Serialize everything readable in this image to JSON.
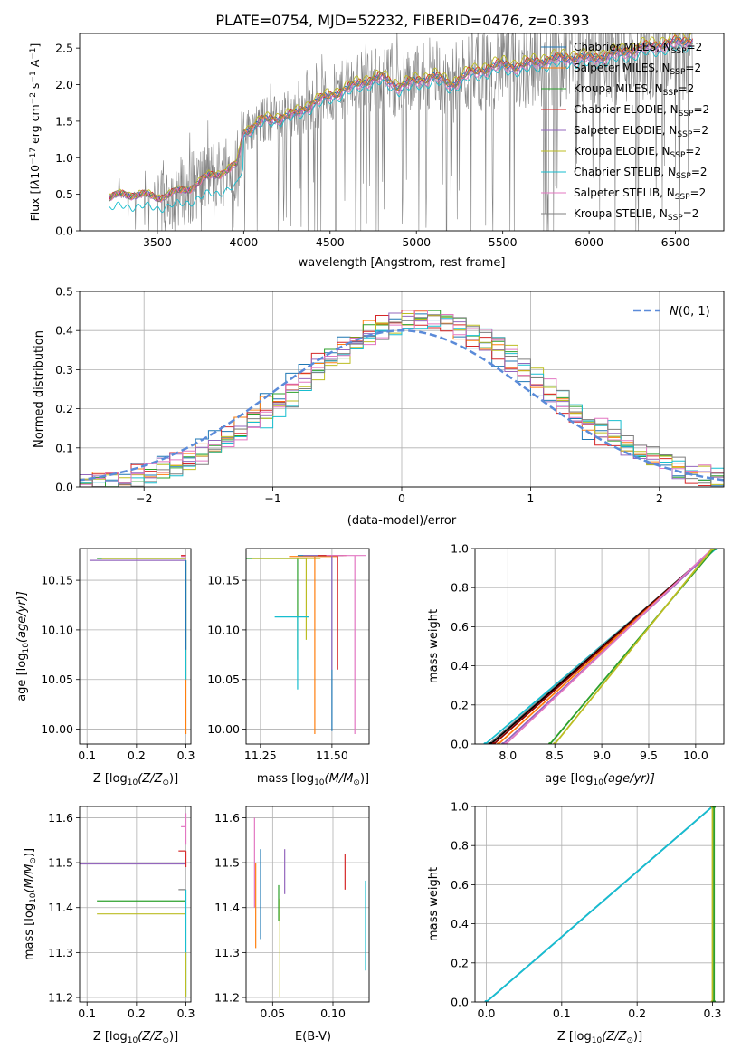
{
  "figure": {
    "title": "PLATE=0754, MJD=52232, FIBERID=0476, z=0.393"
  },
  "colors": {
    "grid": "#b0b0b0",
    "data_gray": "#808080",
    "gaussian": "#5b8bd9",
    "palette": [
      "#1f77b4",
      "#ff7f0e",
      "#2ca02c",
      "#d62728",
      "#9467bd",
      "#8c564b",
      "#e377c2",
      "#7f7f7f",
      "#bcbd22",
      "#17becf"
    ]
  },
  "chart_data": [
    {
      "id": "spectrum",
      "type": "line",
      "xlabel": "wavelength [Angstrom, rest frame]",
      "ylabel_parts": [
        "Flux [f",
        "λ",
        "10",
        "−17",
        " erg cm",
        "−2",
        " s",
        "−1",
        " A",
        "−1",
        "]"
      ],
      "xlim": [
        3050,
        6780
      ],
      "ylim": [
        0,
        2.7
      ],
      "xticks": [
        3500,
        4000,
        4500,
        5000,
        5500,
        6000,
        6500
      ],
      "yticks": [
        0.0,
        0.5,
        1.0,
        1.5,
        2.0,
        2.5
      ],
      "continuum": {
        "x": [
          3220,
          3300,
          3400,
          3500,
          3600,
          3700,
          3800,
          3900,
          3960,
          4000,
          4100,
          4200,
          4300,
          4400,
          4500,
          4600,
          4700,
          4800,
          4900,
          5000,
          5100,
          5200,
          5300,
          5400,
          5500,
          5600,
          5700,
          5800,
          5900,
          6000,
          6100,
          6200,
          6300,
          6400,
          6500,
          6600
        ],
        "y": [
          0.45,
          0.5,
          0.5,
          0.46,
          0.52,
          0.6,
          0.75,
          0.82,
          0.9,
          1.35,
          1.5,
          1.55,
          1.6,
          1.75,
          1.85,
          1.95,
          2.05,
          2.1,
          1.98,
          2.05,
          2.12,
          2.0,
          2.15,
          2.22,
          2.28,
          2.25,
          2.32,
          2.35,
          2.38,
          2.36,
          2.4,
          2.45,
          2.5,
          2.55,
          2.58,
          2.62
        ]
      },
      "data_range": [
        3220,
        6600
      ],
      "model_series": [
        {
          "name": "Chabrier MILES, N_SSP=2",
          "color": "#1f77b4",
          "scale": 1.0,
          "xmax": 6600
        },
        {
          "name": "Salpeter MILES, N_SSP=2",
          "color": "#ff7f0e",
          "scale": 1.0,
          "xmax": 6600
        },
        {
          "name": "Kroupa MILES, N_SSP=2",
          "color": "#2ca02c",
          "scale": 1.0,
          "xmax": 6600
        },
        {
          "name": "Chabrier ELODIE, N_SSP=2",
          "color": "#d62728",
          "scale": 1.01,
          "xmax": 6600
        },
        {
          "name": "Salpeter ELODIE, N_SSP=2",
          "color": "#9467bd",
          "scale": 0.99,
          "xmax": 6600
        },
        {
          "name": "Kroupa ELODIE, N_SSP=2",
          "color": "#bcbd22",
          "scale": 1.03,
          "xmax": 6600
        },
        {
          "name": "Chabrier STELIB, N_SSP=2",
          "color": "#17becf",
          "scale": 0.96,
          "xmax": 6600
        },
        {
          "name": "Salpeter STELIB, N_SSP=2",
          "color": "#e377c2",
          "scale": 0.98,
          "xmax": 6600
        },
        {
          "name": "Kroupa STELIB, N_SSP=2",
          "color": "#7f7f7f",
          "scale": 1.0,
          "xmax": 6600
        }
      ],
      "legend": {
        "placement": "top-right",
        "entries": [
          {
            "prefix": "Chabrier MILES, N",
            "sub": "SSP",
            "suffix": "=2",
            "color": "#1f77b4"
          },
          {
            "prefix": "Salpeter MILES, N",
            "sub": "SSP",
            "suffix": "=2",
            "color": "#ff7f0e"
          },
          {
            "prefix": "Kroupa MILES, N",
            "sub": "SSP",
            "suffix": "=2",
            "color": "#2ca02c"
          },
          {
            "prefix": "Chabrier ELODIE, N",
            "sub": "SSP",
            "suffix": "=2",
            "color": "#d62728"
          },
          {
            "prefix": "Salpeter ELODIE, N",
            "sub": "SSP",
            "suffix": "=2",
            "color": "#9467bd"
          },
          {
            "prefix": "Kroupa ELODIE, N",
            "sub": "SSP",
            "suffix": "=2",
            "color": "#bcbd22"
          },
          {
            "prefix": "Chabrier STELIB, N",
            "sub": "SSP",
            "suffix": "=2",
            "color": "#17becf"
          },
          {
            "prefix": "Salpeter STELIB, N",
            "sub": "SSP",
            "suffix": "=2",
            "color": "#e377c2"
          },
          {
            "prefix": "Kroupa STELIB, N",
            "sub": "SSP",
            "suffix": "=2",
            "color": "#7f7f7f"
          }
        ]
      }
    },
    {
      "id": "residuals",
      "type": "histogram",
      "xlabel": "(data-model)/error",
      "ylabel": "Normed distribution",
      "xlim": [
        -2.5,
        2.5
      ],
      "ylim": [
        0,
        0.5
      ],
      "xticks": [
        -2,
        -1,
        0,
        1,
        2
      ],
      "yticks": [
        0.0,
        0.1,
        0.2,
        0.3,
        0.4,
        0.5
      ],
      "bin_width": 0.1,
      "gaussian": {
        "label": "N(0,1)",
        "mu": 0,
        "sigma": 1,
        "amplitude": 0.4
      },
      "legend": {
        "placement": "top-right",
        "label_main": "N",
        "label_rest": "(0, 1)"
      },
      "series_centers": [
        0.05,
        0.1,
        0.15,
        0.08,
        0.12,
        0.2,
        0.25,
        0.18,
        0.22
      ]
    },
    {
      "id": "age_vs_Z",
      "type": "errorbar",
      "xlabel_parts": [
        "Z [log",
        "10",
        "(Z/Z",
        "⊙",
        ")]"
      ],
      "ylabel_parts": [
        "age  [log",
        "10",
        "(age/yr)]"
      ],
      "xlim": [
        0.085,
        0.31
      ],
      "ylim": [
        9.985,
        10.182
      ],
      "xticks": [
        0.1,
        0.2,
        0.3
      ],
      "yticks": [
        10.0,
        10.05,
        10.1,
        10.15
      ],
      "bars": [
        {
          "x": 0.3,
          "y": 10.17,
          "xerr": [
            0.105,
            0.3
          ],
          "color": "#9467bd"
        },
        {
          "x": 0.3,
          "y": 10.172,
          "xerr": [
            0.12,
            0.3
          ],
          "color": "#2ca02c"
        },
        {
          "x": 0.3,
          "y": 10.172,
          "xerr": [
            0.13,
            0.3
          ],
          "color": "#bcbd22"
        },
        {
          "x": 0.3,
          "y": 10.174,
          "xerr": [
            0.29,
            0.3
          ],
          "color": "#e377c2"
        },
        {
          "x": 0.3,
          "y": 10.175,
          "xerr": [
            0.29,
            0.3
          ],
          "color": "#d62728"
        },
        {
          "x": 0.3,
          "y": 10.17,
          "yerr": [
            9.995,
            10.17
          ],
          "color": "#ff7f0e"
        },
        {
          "x": 0.3,
          "y": 10.17,
          "yerr": [
            10.05,
            10.17
          ],
          "color": "#17becf"
        },
        {
          "x": 0.3,
          "y": 10.17,
          "yerr": [
            10.08,
            10.17
          ],
          "color": "#1f77b4"
        }
      ]
    },
    {
      "id": "age_vs_mass",
      "type": "errorbar",
      "xlabel_parts": [
        "mass [log",
        "10",
        "(M/M",
        "⊙",
        ")]"
      ],
      "xlim": [
        11.2,
        11.63
      ],
      "ylim": [
        9.985,
        10.182
      ],
      "xticks": [
        11.25,
        11.5
      ],
      "yticks": [
        10.0,
        10.05,
        10.1,
        10.15
      ],
      "bars": [
        {
          "x": 11.38,
          "y": 10.172,
          "xerr": [
            11.2,
            11.41
          ],
          "yerr": [
            10.07,
            10.172
          ],
          "color": "#2ca02c"
        },
        {
          "x": 11.41,
          "y": 10.172,
          "xerr": [
            11.22,
            11.46
          ],
          "yerr": [
            10.09,
            10.172
          ],
          "color": "#bcbd22"
        },
        {
          "x": 11.44,
          "y": 10.174,
          "xerr": [
            11.35,
            11.52
          ],
          "yerr": [
            9.995,
            10.174
          ],
          "color": "#ff7f0e"
        },
        {
          "x": 11.5,
          "y": 10.175,
          "xerr": [
            11.38,
            11.54
          ],
          "yerr": [
            9.998,
            10.175
          ],
          "color": "#1f77b4"
        },
        {
          "x": 11.5,
          "y": 10.175,
          "xerr": [
            11.4,
            11.52
          ],
          "yerr": [
            10.06,
            10.175
          ],
          "color": "#9467bd"
        },
        {
          "x": 11.52,
          "y": 10.175,
          "xerr": [
            11.45,
            11.55
          ],
          "yerr": [
            10.06,
            10.175
          ],
          "color": "#d62728"
        },
        {
          "x": 11.58,
          "y": 10.175,
          "xerr": [
            11.48,
            11.62
          ],
          "yerr": [
            9.995,
            10.175
          ],
          "color": "#e377c2"
        },
        {
          "x": 11.38,
          "y": 10.113,
          "xerr": [
            11.3,
            11.42
          ],
          "yerr": [
            10.04,
            10.113
          ],
          "color": "#17becf"
        }
      ]
    },
    {
      "id": "cum_age",
      "type": "line",
      "xlabel_parts": [
        "age  [log",
        "10",
        "(age/yr)]"
      ],
      "ylabel": "mass weight",
      "xlim": [
        7.65,
        10.3
      ],
      "ylim": [
        0,
        1
      ],
      "xticks": [
        8.0,
        8.5,
        9.0,
        9.5,
        10.0
      ],
      "yticks": [
        0.0,
        0.2,
        0.4,
        0.6,
        0.8,
        1.0
      ],
      "series": [
        {
          "x": [
            7.76,
            10.22
          ],
          "y": [
            0,
            1
          ],
          "color": "#17becf"
        },
        {
          "x": [
            7.8,
            10.2
          ],
          "y": [
            0,
            1
          ],
          "color": "#7f7f7f"
        },
        {
          "x": [
            7.82,
            10.2
          ],
          "y": [
            0,
            1
          ],
          "color": "#000000"
        },
        {
          "x": [
            7.85,
            10.2
          ],
          "y": [
            0,
            1
          ],
          "color": "#8b0000"
        },
        {
          "x": [
            7.9,
            10.2
          ],
          "y": [
            0,
            1
          ],
          "color": "#ff7f0e"
        },
        {
          "x": [
            7.95,
            10.2
          ],
          "y": [
            0,
            1
          ],
          "color": "#9467bd"
        },
        {
          "x": [
            7.98,
            10.18
          ],
          "y": [
            0,
            1
          ],
          "color": "#e377c2"
        },
        {
          "x": [
            8.45,
            10.2
          ],
          "y": [
            0,
            1
          ],
          "color": "#2ca02c"
        },
        {
          "x": [
            8.5,
            10.18
          ],
          "y": [
            0,
            1
          ],
          "color": "#bcbd22"
        }
      ]
    },
    {
      "id": "mass_vs_Z",
      "type": "errorbar",
      "xlabel_parts": [
        "Z [log",
        "10",
        "(Z/Z",
        "⊙",
        ")]"
      ],
      "ylabel_parts": [
        "mass [log",
        "10",
        "(M/M",
        "⊙",
        ")]"
      ],
      "xlim": [
        0.085,
        0.31
      ],
      "ylim": [
        11.19,
        11.625
      ],
      "xticks": [
        0.1,
        0.2,
        0.3
      ],
      "yticks": [
        11.2,
        11.3,
        11.4,
        11.5,
        11.6
      ],
      "bars": [
        {
          "x": 0.3,
          "y": 11.498,
          "xerr": [
            0.085,
            0.3
          ],
          "color": "#1f77b4"
        },
        {
          "x": 0.3,
          "y": 11.497,
          "xerr": [
            0.085,
            0.3
          ],
          "color": "#9467bd"
        },
        {
          "x": 0.3,
          "y": 11.415,
          "xerr": [
            0.12,
            0.3
          ],
          "color": "#2ca02c"
        },
        {
          "x": 0.3,
          "y": 11.386,
          "xerr": [
            0.12,
            0.3
          ],
          "color": "#bcbd22"
        },
        {
          "x": 0.3,
          "y": 11.526,
          "xerr": [
            0.285,
            0.3
          ],
          "yerr": [
            11.49,
            11.526
          ],
          "color": "#d62728"
        },
        {
          "x": 0.3,
          "y": 11.58,
          "xerr": [
            0.29,
            0.3
          ],
          "yerr": [
            11.54,
            11.61
          ],
          "color": "#e377c2"
        },
        {
          "x": 0.3,
          "y": 11.44,
          "xerr": [
            0.285,
            0.3
          ],
          "color": "#7f7f7f"
        },
        {
          "x": 0.3,
          "y": 11.3,
          "yerr": [
            11.2,
            11.44
          ],
          "color": "#17becf"
        },
        {
          "x": 0.3,
          "y": 11.25,
          "yerr": [
            11.2,
            11.3
          ],
          "color": "#bcbd22"
        }
      ]
    },
    {
      "id": "mass_vs_EBV",
      "type": "errorbar",
      "xlabel": "E(B-V)",
      "xlim": [
        0.028,
        0.13
      ],
      "ylim": [
        11.19,
        11.625
      ],
      "xticks": [
        0.05,
        0.1
      ],
      "yticks": [
        11.2,
        11.3,
        11.4,
        11.5,
        11.6
      ],
      "bars": [
        {
          "x": 0.035,
          "y": 11.5,
          "yerr": [
            11.4,
            11.6
          ],
          "color": "#e377c2"
        },
        {
          "x": 0.036,
          "y": 11.4,
          "yerr": [
            11.31,
            11.5
          ],
          "color": "#ff7f0e"
        },
        {
          "x": 0.04,
          "y": 11.43,
          "yerr": [
            11.33,
            11.53
          ],
          "color": "#1f77b4"
        },
        {
          "x": 0.055,
          "y": 11.41,
          "yerr": [
            11.37,
            11.45
          ],
          "color": "#2ca02c"
        },
        {
          "x": 0.056,
          "y": 11.31,
          "yerr": [
            11.2,
            11.42
          ],
          "color": "#bcbd22"
        },
        {
          "x": 0.06,
          "y": 11.48,
          "yerr": [
            11.43,
            11.53
          ],
          "color": "#9467bd"
        },
        {
          "x": 0.11,
          "y": 11.48,
          "yerr": [
            11.44,
            11.52
          ],
          "color": "#d62728"
        },
        {
          "x": 0.127,
          "y": 11.36,
          "yerr": [
            11.26,
            11.46
          ],
          "color": "#17becf"
        }
      ]
    },
    {
      "id": "cum_Z",
      "type": "line",
      "xlabel_parts": [
        "Z [log",
        "10",
        "(Z/Z",
        "⊙",
        ")]"
      ],
      "ylabel": "mass weight",
      "xlim": [
        -0.015,
        0.315
      ],
      "ylim": [
        0,
        1
      ],
      "xticks": [
        0.0,
        0.1,
        0.2,
        0.3
      ],
      "yticks": [
        0.0,
        0.2,
        0.4,
        0.6,
        0.8,
        1.0
      ],
      "series": [
        {
          "x": [
            0.0,
            0.3
          ],
          "y": [
            0,
            1
          ],
          "color": "#1f77b4"
        },
        {
          "x": [
            0.0,
            0.3
          ],
          "y": [
            0,
            1
          ],
          "color": "#17becf"
        },
        {
          "x": [
            0.3,
            0.3
          ],
          "y": [
            0,
            1
          ],
          "color": "#bcbd22"
        },
        {
          "x": [
            0.302,
            0.302
          ],
          "y": [
            0,
            1
          ],
          "color": "#2ca02c"
        }
      ]
    }
  ]
}
